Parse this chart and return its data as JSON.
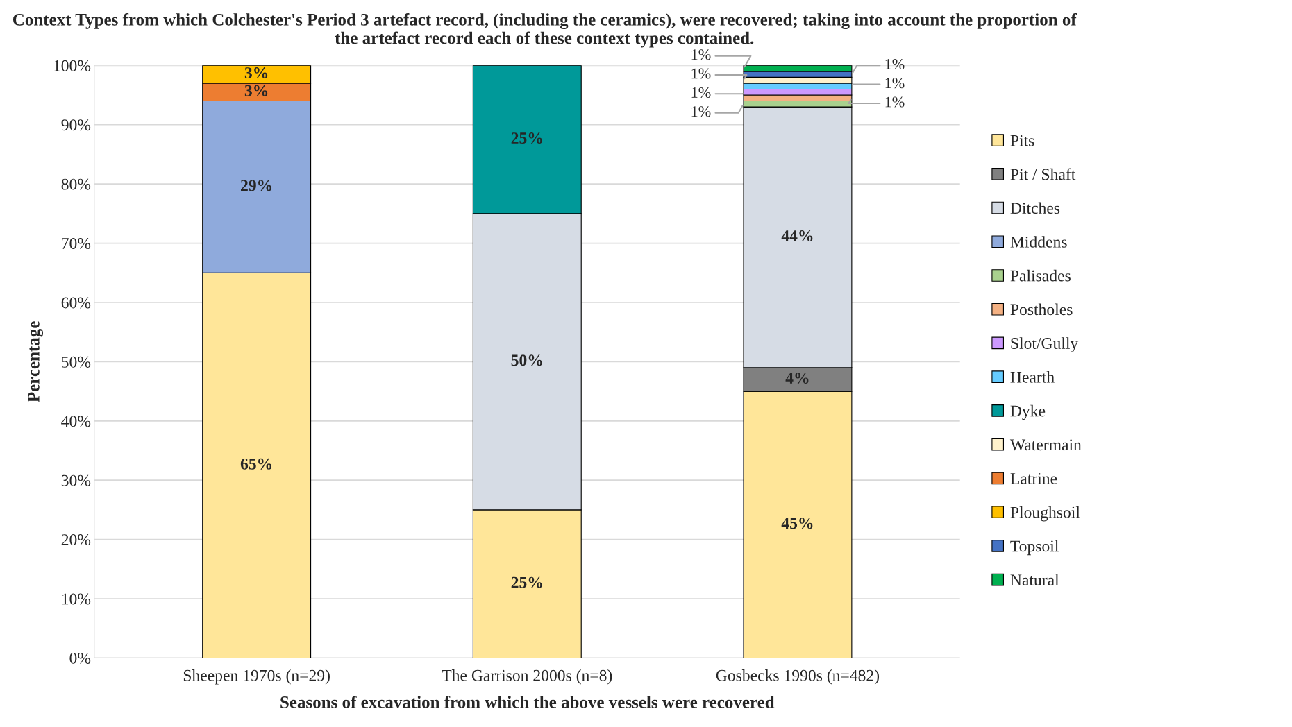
{
  "chart_data": {
    "type": "bar",
    "stacked": true,
    "title": "Context Types from which Colchester's Period 3 artefact record, (including the ceramics), were recovered; taking into account the proportion of the artefact record each of these context types contained.",
    "xlabel": "Seasons of excavation from which the above vessels were recovered",
    "ylabel": "Percentage",
    "categories": [
      "Sheepen 1970s (n=29)",
      "The Garrison 2000s (n=8)",
      "Gosbecks 1990s (n=482)"
    ],
    "ylim": [
      0,
      100
    ],
    "yticks": [
      {
        "value": 0,
        "label": "0%"
      },
      {
        "value": 10,
        "label": "10%"
      },
      {
        "value": 20,
        "label": "20%"
      },
      {
        "value": 30,
        "label": "30%"
      },
      {
        "value": 40,
        "label": "40%"
      },
      {
        "value": 50,
        "label": "50%"
      },
      {
        "value": 60,
        "label": "60%"
      },
      {
        "value": 70,
        "label": "70%"
      },
      {
        "value": 80,
        "label": "80%"
      },
      {
        "value": 90,
        "label": "90%"
      },
      {
        "value": 100,
        "label": "100%"
      }
    ],
    "grid": "y",
    "legend": "right",
    "series": [
      {
        "name": "Pits",
        "color": "#ffe699",
        "values": [
          65,
          25,
          45
        ],
        "value_labels": [
          "65%",
          "25%",
          "45%"
        ]
      },
      {
        "name": "Pit / Shaft",
        "color": "#808080",
        "values": [
          null,
          null,
          4
        ],
        "value_labels": [
          null,
          null,
          "4%"
        ]
      },
      {
        "name": "Ditches",
        "color": "#d6dce5",
        "values": [
          null,
          50,
          44
        ],
        "value_labels": [
          null,
          "50%",
          "44%"
        ]
      },
      {
        "name": "Middens",
        "color": "#8faadc",
        "values": [
          29,
          null,
          null
        ],
        "value_labels": [
          "29%",
          null,
          null
        ]
      },
      {
        "name": "Palisades",
        "color": "#a9d18e",
        "values": [
          null,
          null,
          1
        ],
        "value_labels": [
          null,
          null,
          "1%"
        ]
      },
      {
        "name": "Postholes",
        "color": "#f4b183",
        "values": [
          null,
          null,
          1
        ],
        "value_labels": [
          null,
          null,
          "1%"
        ]
      },
      {
        "name": "Slot/Gully",
        "color": "#cc99ff",
        "values": [
          null,
          null,
          1
        ],
        "value_labels": [
          null,
          null,
          "1%"
        ]
      },
      {
        "name": "Hearth",
        "color": "#66ccff",
        "values": [
          null,
          null,
          1
        ],
        "value_labels": [
          null,
          null,
          "1%"
        ]
      },
      {
        "name": "Dyke",
        "color": "#009999",
        "values": [
          null,
          25,
          null
        ],
        "value_labels": [
          null,
          "25%",
          null
        ]
      },
      {
        "name": "Watermain",
        "color": "#fff2cc",
        "values": [
          null,
          null,
          1
        ],
        "value_labels": [
          null,
          null,
          "1%"
        ]
      },
      {
        "name": "Latrine",
        "color": "#ed7d31",
        "values": [
          3,
          null,
          null
        ],
        "value_labels": [
          "3%",
          null,
          null
        ]
      },
      {
        "name": "Ploughsoil",
        "color": "#ffc000",
        "values": [
          3,
          null,
          null
        ],
        "value_labels": [
          "3%",
          null,
          null
        ]
      },
      {
        "name": "Topsoil",
        "color": "#4472c4",
        "values": [
          null,
          null,
          1
        ],
        "value_labels": [
          null,
          null,
          "1%"
        ]
      },
      {
        "name": "Natural",
        "color": "#00b050",
        "values": [
          null,
          null,
          1
        ],
        "value_labels": [
          null,
          null,
          "1%"
        ]
      }
    ]
  }
}
